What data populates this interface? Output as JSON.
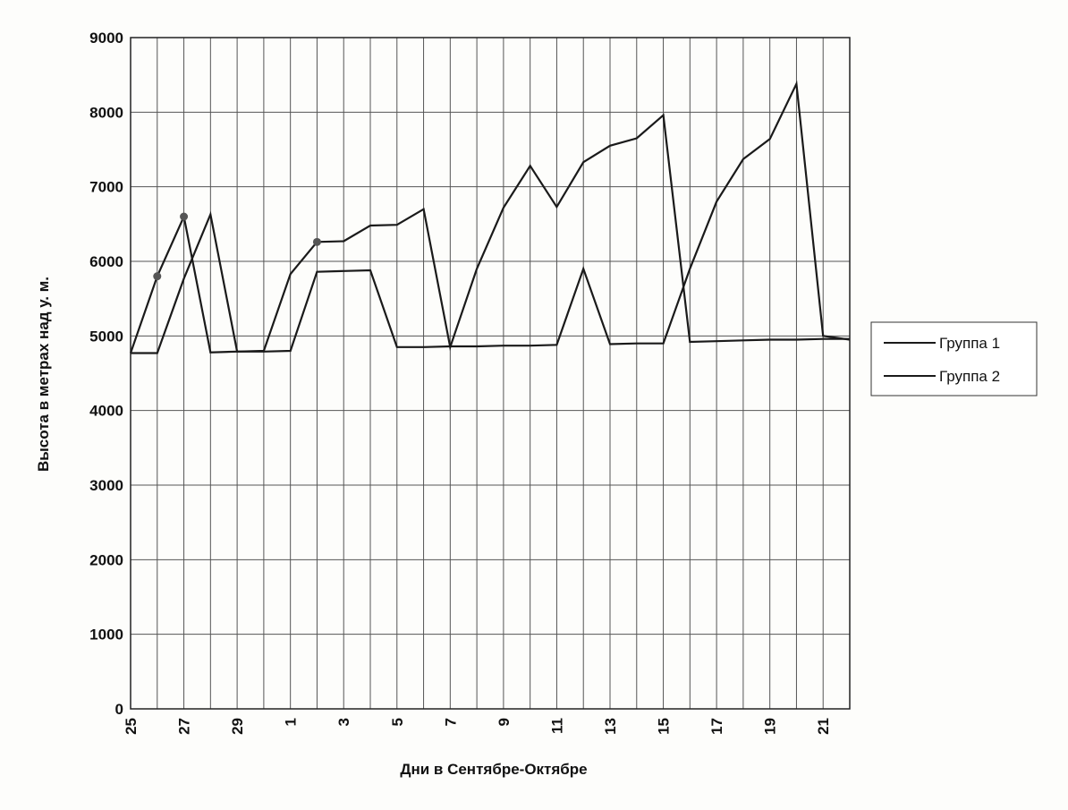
{
  "chart_data": {
    "type": "line",
    "title": "",
    "xlabel": "Дни в Сентябре-Октябре",
    "ylabel": "Высота в метрах над у. м.",
    "ylim": [
      0,
      9000
    ],
    "yticks": [
      "0",
      "1000",
      "2000",
      "3000",
      "4000",
      "5000",
      "6000",
      "7000",
      "8000",
      "9000"
    ],
    "categories": [
      "25",
      "26",
      "27",
      "28",
      "29",
      "30",
      "1",
      "2",
      "3",
      "4",
      "5",
      "6",
      "7",
      "8",
      "9",
      "10",
      "11",
      "12",
      "13",
      "14",
      "15",
      "16",
      "17",
      "18",
      "19",
      "20",
      "21",
      "22"
    ],
    "x_tick_labels": [
      "25",
      "27",
      "29",
      "1",
      "3",
      "5",
      "7",
      "9",
      "11",
      "13",
      "15",
      "17",
      "19",
      "21"
    ],
    "grid": true,
    "legend_position": "right",
    "series": [
      {
        "name": "Группа 1",
        "color": "#1a1a1a",
        "values": [
          4770,
          5800,
          6600,
          4780,
          4790,
          4800,
          5830,
          6260,
          6270,
          6480,
          6490,
          6700,
          4850,
          5900,
          6720,
          7280,
          6730,
          7330,
          7550,
          7650,
          7960,
          4920,
          4930,
          4940,
          4950,
          4950,
          4960,
          4960
        ]
      },
      {
        "name": "Группа 2",
        "color": "#1a1a1a",
        "values": [
          4770,
          4770,
          5770,
          6630,
          4790,
          4790,
          4800,
          5860,
          5870,
          5880,
          4850,
          4850,
          4860,
          4860,
          4870,
          4870,
          4880,
          5900,
          4890,
          4900,
          4900,
          5900,
          6800,
          7370,
          7640,
          8380,
          5000,
          4950
        ]
      }
    ],
    "markers": [
      {
        "series": "Группа 1",
        "index": 1,
        "value": 5800
      },
      {
        "series": "Группа 1",
        "index": 2,
        "value": 6600
      },
      {
        "series": "Группа 1",
        "index": 7,
        "value": 6260
      }
    ]
  }
}
